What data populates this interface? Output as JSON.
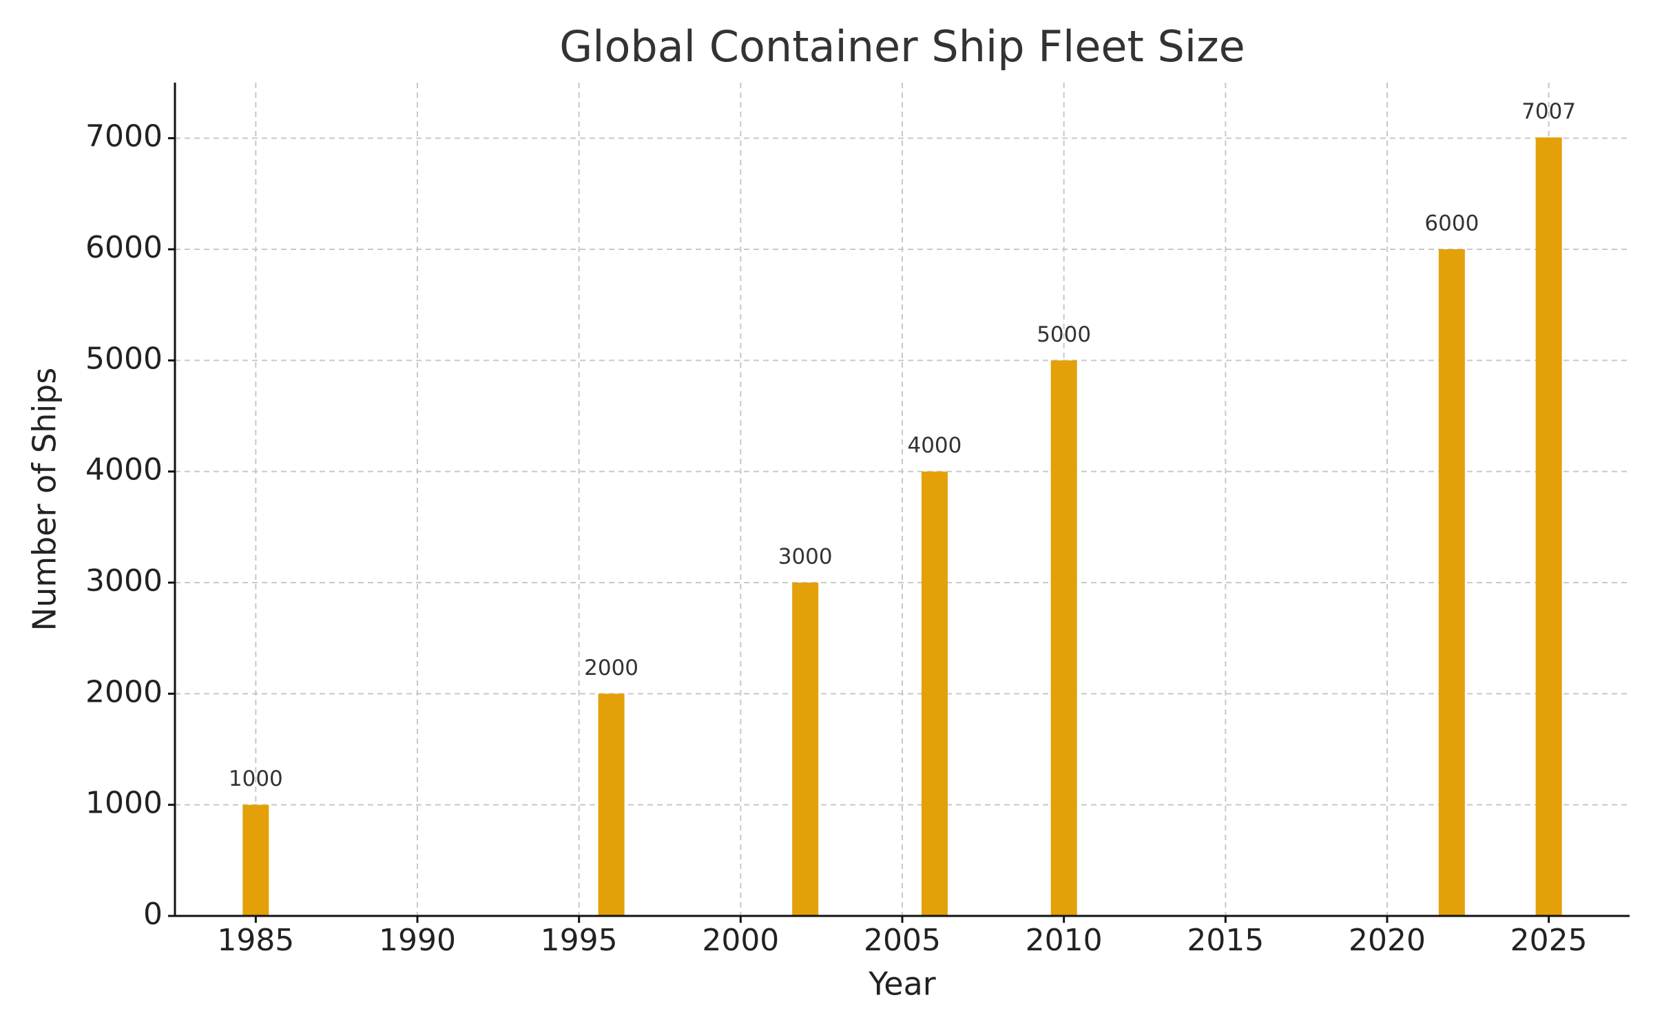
{
  "chart_data": {
    "type": "bar",
    "title": "Global Container Ship Fleet Size",
    "x_label": "Year",
    "y_label": "Number of Ships",
    "x": [
      1985,
      1996,
      2002,
      2006,
      2010,
      2022,
      2025
    ],
    "values": [
      1000,
      2000,
      3000,
      4000,
      5000,
      6000,
      7007
    ],
    "color": "#e3a008",
    "xlim": [
      1982.5,
      2027.5
    ],
    "xticks": [
      1985,
      1990,
      1995,
      2000,
      2005,
      2010,
      2015,
      2020,
      2025
    ],
    "ylim": [
      0,
      7500
    ],
    "yticks": [
      0,
      1000,
      2000,
      3000,
      4000,
      5000,
      6000,
      7000
    ],
    "grid": true
  }
}
